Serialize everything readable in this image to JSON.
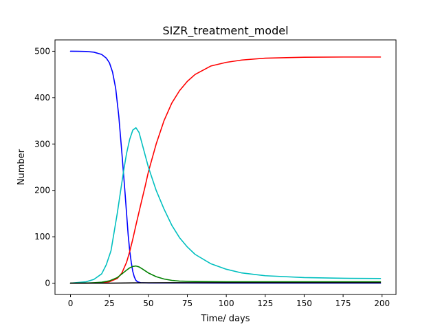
{
  "chart_data": {
    "type": "line",
    "title": "SIZR_treatment_model",
    "xlabel": "Time/ days",
    "ylabel": "Number",
    "xlim": [
      -9.95,
      208.95
    ],
    "ylim": [
      -24.4,
      524.4
    ],
    "xticks": [
      0,
      25,
      50,
      75,
      100,
      125,
      150,
      175,
      200
    ],
    "yticks": [
      0,
      100,
      200,
      300,
      400,
      500
    ],
    "grid": false,
    "legend": "none",
    "series": [
      {
        "color": "#0000ff",
        "points": [
          [
            0,
            500
          ],
          [
            5,
            499.9
          ],
          [
            10,
            499.5
          ],
          [
            15,
            498
          ],
          [
            20,
            493
          ],
          [
            23,
            485
          ],
          [
            25,
            475
          ],
          [
            27,
            455
          ],
          [
            29,
            420
          ],
          [
            31,
            360
          ],
          [
            33,
            280
          ],
          [
            35,
            195
          ],
          [
            36,
            150
          ],
          [
            37,
            105
          ],
          [
            38,
            70
          ],
          [
            39,
            45
          ],
          [
            40,
            25
          ],
          [
            41,
            13
          ],
          [
            42,
            6
          ],
          [
            43,
            3
          ],
          [
            45,
            1
          ],
          [
            50,
            0.4
          ],
          [
            75,
            0.3
          ],
          [
            100,
            0.2
          ],
          [
            150,
            0.1
          ],
          [
            199,
            0.1
          ]
        ]
      },
      {
        "color": "#ff0000",
        "points": [
          [
            0,
            0
          ],
          [
            10,
            0.1
          ],
          [
            20,
            1
          ],
          [
            25,
            3
          ],
          [
            30,
            10
          ],
          [
            33,
            22
          ],
          [
            36,
            45
          ],
          [
            38,
            68
          ],
          [
            40,
            95
          ],
          [
            42,
            125
          ],
          [
            45,
            168
          ],
          [
            48,
            210
          ],
          [
            50,
            240
          ],
          [
            55,
            300
          ],
          [
            60,
            350
          ],
          [
            65,
            388
          ],
          [
            70,
            415
          ],
          [
            75,
            435
          ],
          [
            80,
            450
          ],
          [
            90,
            468
          ],
          [
            100,
            476
          ],
          [
            110,
            481
          ],
          [
            125,
            485
          ],
          [
            150,
            487
          ],
          [
            175,
            487.5
          ],
          [
            199,
            487.5
          ]
        ]
      },
      {
        "color": "#00bfbf",
        "points": [
          [
            0,
            0
          ],
          [
            10,
            3
          ],
          [
            15,
            8
          ],
          [
            20,
            20
          ],
          [
            23,
            40
          ],
          [
            26,
            70
          ],
          [
            28,
            110
          ],
          [
            30,
            150
          ],
          [
            32,
            195
          ],
          [
            34,
            240
          ],
          [
            36,
            280
          ],
          [
            38,
            310
          ],
          [
            40,
            330
          ],
          [
            42,
            335
          ],
          [
            44,
            325
          ],
          [
            46,
            300
          ],
          [
            48,
            275
          ],
          [
            50,
            250
          ],
          [
            55,
            200
          ],
          [
            60,
            160
          ],
          [
            65,
            125
          ],
          [
            70,
            98
          ],
          [
            75,
            78
          ],
          [
            80,
            62
          ],
          [
            90,
            42
          ],
          [
            100,
            30
          ],
          [
            110,
            22
          ],
          [
            125,
            16
          ],
          [
            150,
            12
          ],
          [
            175,
            10.5
          ],
          [
            199,
            10
          ]
        ]
      },
      {
        "color": "#008000",
        "points": [
          [
            0,
            0
          ],
          [
            10,
            0.3
          ],
          [
            15,
            1
          ],
          [
            20,
            2
          ],
          [
            25,
            5
          ],
          [
            30,
            12
          ],
          [
            33,
            20
          ],
          [
            36,
            28
          ],
          [
            38,
            33
          ],
          [
            40,
            36
          ],
          [
            42,
            37
          ],
          [
            44,
            35
          ],
          [
            46,
            31
          ],
          [
            50,
            22
          ],
          [
            55,
            14
          ],
          [
            60,
            9
          ],
          [
            65,
            6
          ],
          [
            70,
            4.5
          ],
          [
            80,
            3.5
          ],
          [
            100,
            3
          ],
          [
            150,
            3
          ],
          [
            199,
            3
          ]
        ]
      },
      {
        "color": "#000000",
        "points": [
          [
            0,
            0
          ],
          [
            25,
            0
          ],
          [
            35,
            0.3
          ],
          [
            40,
            0.5
          ],
          [
            50,
            0.8
          ],
          [
            75,
            1
          ],
          [
            100,
            1
          ],
          [
            150,
            1
          ],
          [
            199,
            1
          ]
        ]
      }
    ]
  }
}
